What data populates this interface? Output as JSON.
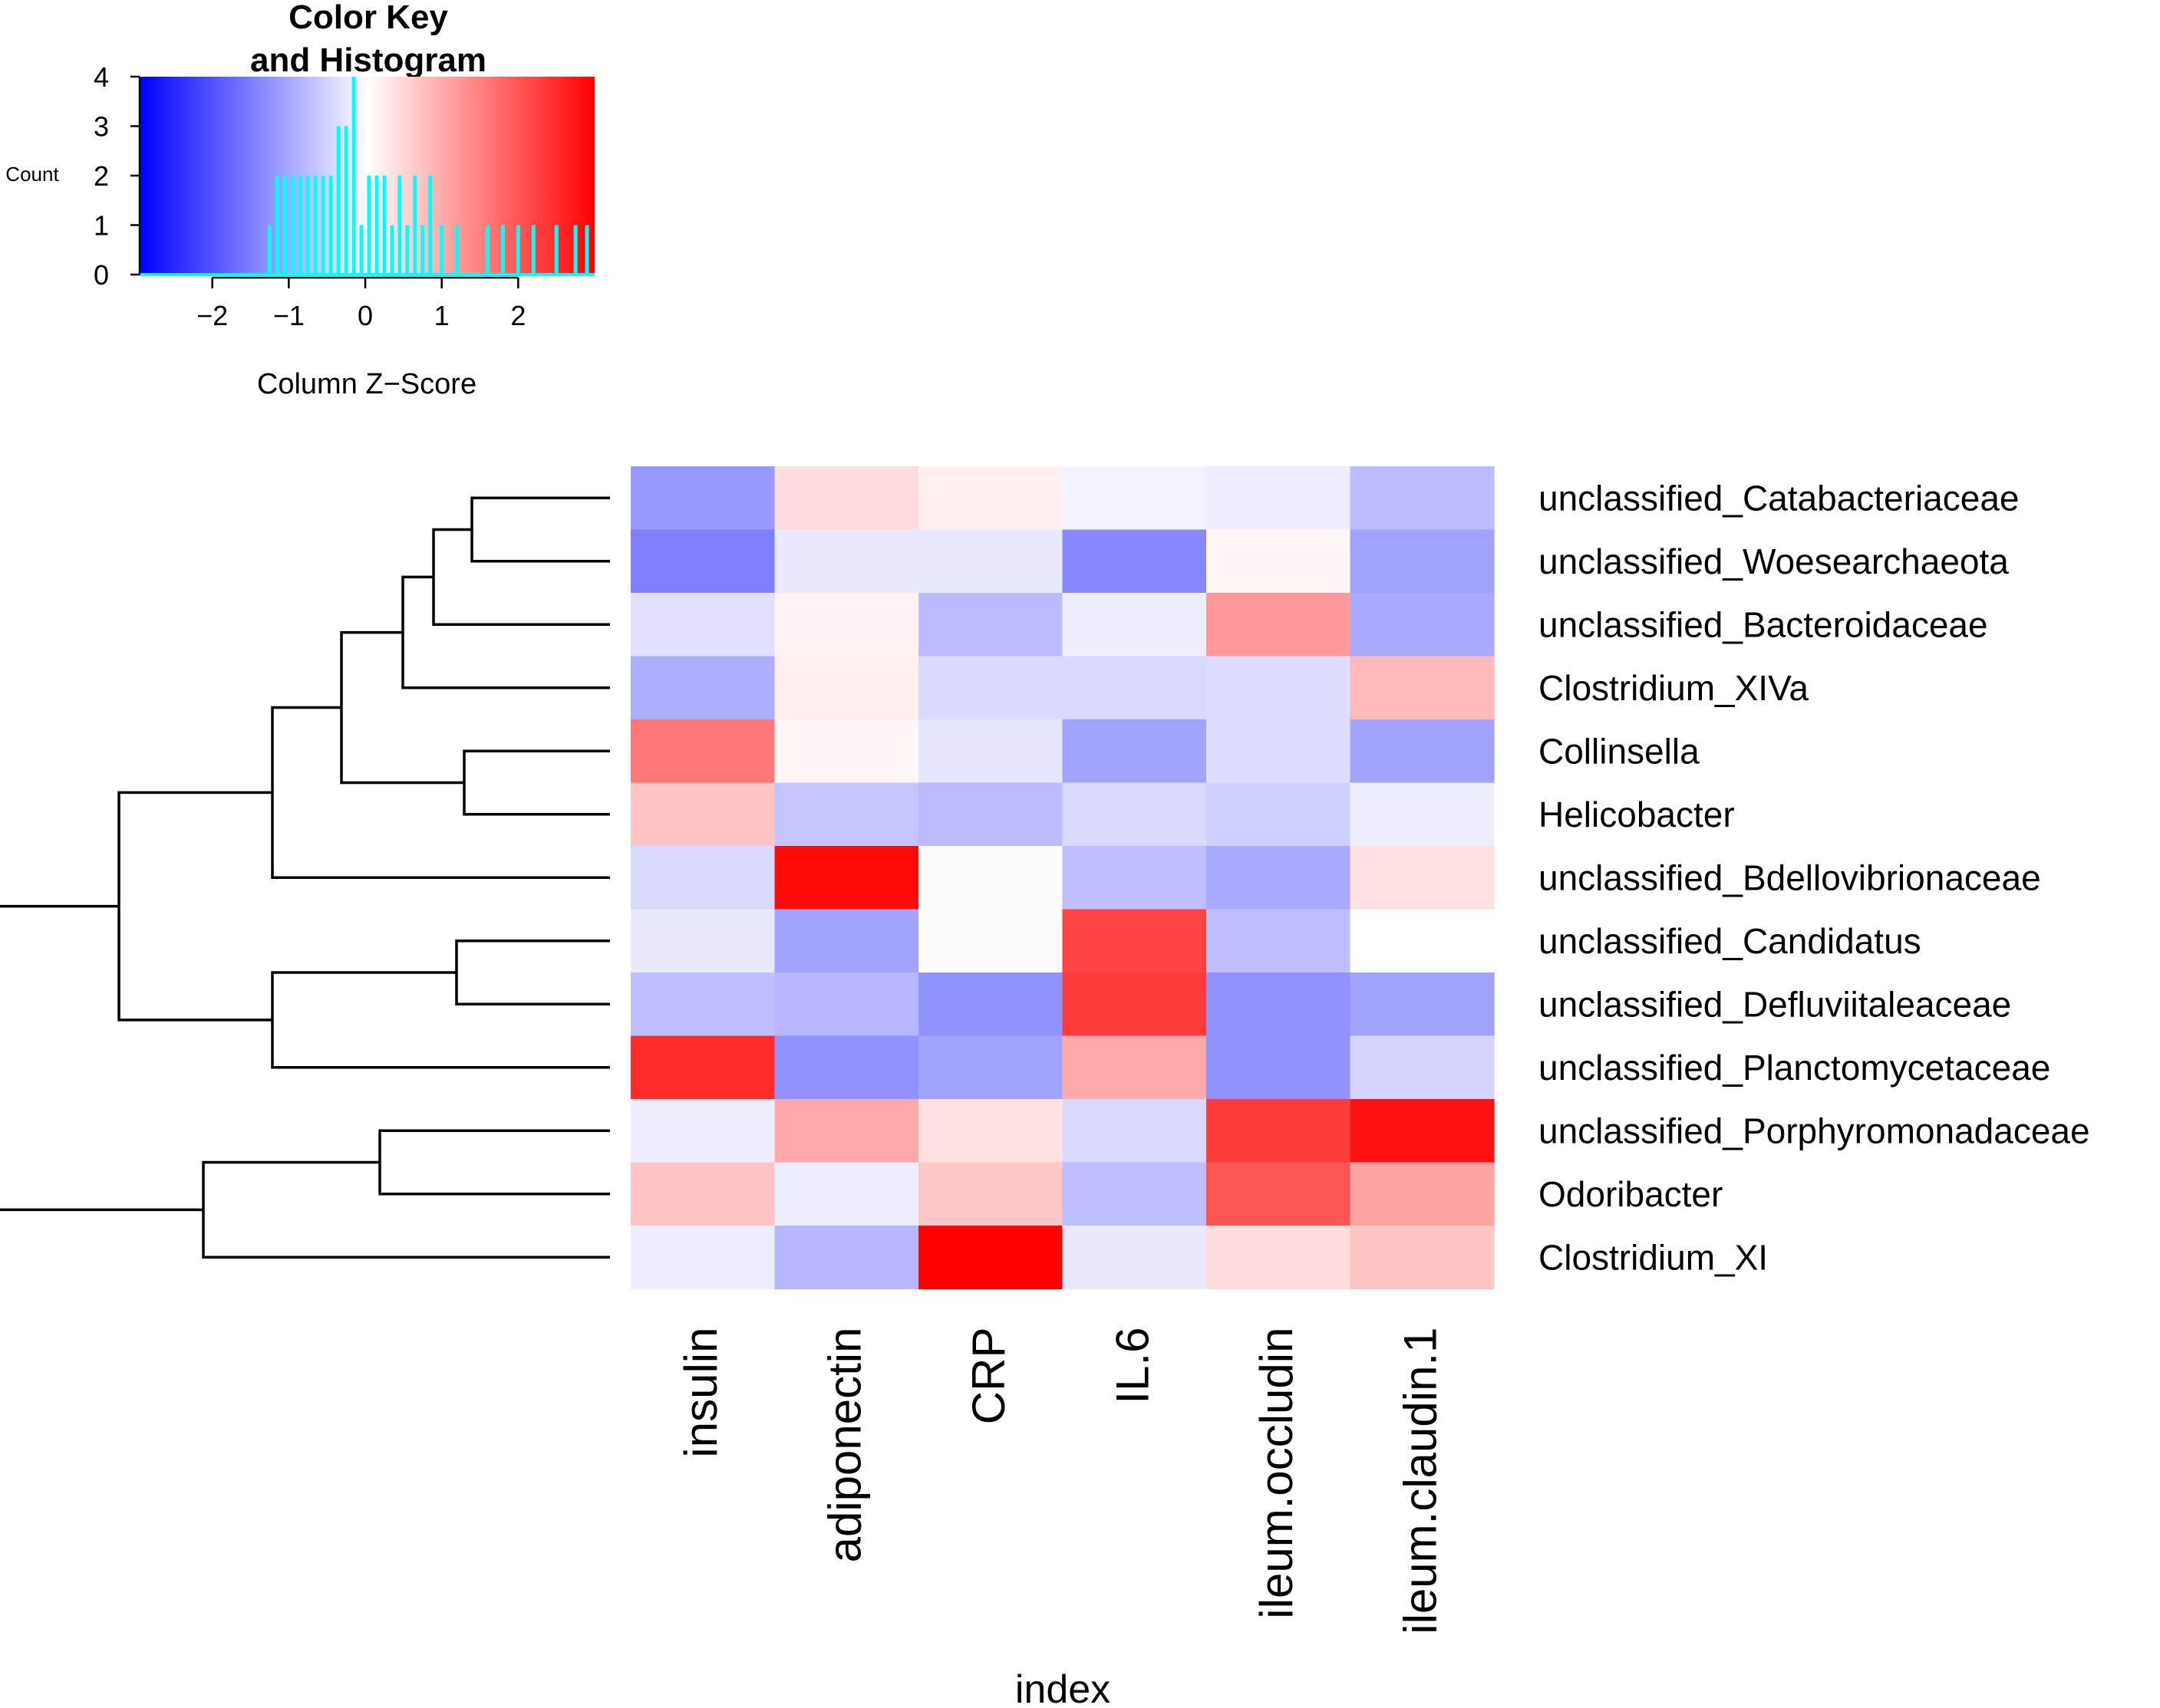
{
  "chart_data": [
    {
      "type": "heatmap",
      "title": "",
      "xlabel": "index",
      "ylabel": "",
      "columns": [
        "insulin",
        "adiponectin",
        "CRP",
        "IL.6",
        "ileum.occludin",
        "ileum.claudin.1"
      ],
      "rows": [
        "unclassified_Catabacteriaceae",
        "unclassified_Woesearchaeota",
        "unclassified_Bacteroidaceae",
        "Clostridium_XIVa",
        "Collinsella",
        "Helicobacter",
        "unclassified_Bdellovibrionaceae",
        "unclassified_Candidatus",
        "unclassified_Defluviitaleaceae",
        "unclassified_Planctomycetaceae",
        "unclassified_Porphyromonadaceae",
        "Odoribacter",
        "Clostridium_XI"
      ],
      "values": [
        [
          -1.2,
          0.4,
          0.2,
          -0.15,
          -0.2,
          -0.8
        ],
        [
          -1.5,
          -0.25,
          -0.25,
          -1.4,
          0.1,
          -1.1
        ],
        [
          -0.35,
          0.15,
          -0.8,
          -0.2,
          1.2,
          -1.0
        ],
        [
          -0.95,
          0.2,
          -0.45,
          -0.45,
          -0.4,
          0.8
        ],
        [
          1.6,
          0.1,
          -0.3,
          -1.1,
          -0.4,
          -1.1
        ],
        [
          0.7,
          -0.7,
          -0.8,
          -0.45,
          -0.55,
          -0.2
        ],
        [
          -0.45,
          2.9,
          0.05,
          -0.75,
          -1.0,
          0.35
        ],
        [
          -0.25,
          -1.1,
          0.05,
          2.2,
          -0.75,
          0.0
        ],
        [
          -0.75,
          -0.85,
          -1.3,
          2.3,
          -1.3,
          -1.1
        ],
        [
          2.5,
          -1.3,
          -1.1,
          1.0,
          -1.3,
          -0.5
        ],
        [
          -0.2,
          1.0,
          0.35,
          -0.45,
          2.3,
          2.8
        ],
        [
          0.7,
          -0.2,
          0.65,
          -0.75,
          2.0,
          1.1
        ],
        [
          -0.2,
          -0.85,
          3.0,
          -0.25,
          0.4,
          0.7
        ]
      ],
      "color_scale": {
        "min": -3,
        "max": 3,
        "low_color": "#0000ff",
        "mid_color": "#ffffff",
        "high_color": "#ff0000"
      },
      "row_dendrogram": {
        "leaf_order": [
          0,
          1,
          2,
          3,
          4,
          5,
          6,
          7,
          8,
          9,
          10,
          11,
          12
        ],
        "merges": [
          {
            "left": "L0",
            "right": "L1",
            "height": 0.18
          },
          {
            "left": "M1",
            "right": "L2",
            "height": 0.23
          },
          {
            "left": "M2",
            "right": "L3",
            "height": 0.27
          },
          {
            "left": "L4",
            "right": "L5",
            "height": 0.19
          },
          {
            "left": "M3",
            "right": "M4",
            "height": 0.35
          },
          {
            "left": "M5",
            "right": "L6",
            "height": 0.44
          },
          {
            "left": "L7",
            "right": "L8",
            "height": 0.2
          },
          {
            "left": "M7",
            "right": "L9",
            "height": 0.44
          },
          {
            "left": "M6",
            "right": "M8",
            "height": 0.64
          },
          {
            "left": "L10",
            "right": "L11",
            "height": 0.3
          },
          {
            "left": "M10",
            "right": "L12",
            "height": 0.53
          },
          {
            "left": "M9",
            "right": "M11",
            "height": 0.8
          }
        ]
      }
    },
    {
      "type": "bar",
      "title": "Color Key\nand Histogram",
      "title_lines": [
        "Color Key",
        "and Histogram"
      ],
      "xlabel": "Column Z−Score",
      "ylabel": "Count",
      "xlim": [
        -2.95,
        3.0
      ],
      "ylim": [
        0,
        4
      ],
      "x_ticks": [
        -2,
        -1,
        0,
        1,
        2
      ],
      "x_tick_labels": [
        "−2",
        "−1",
        "0",
        "1",
        "2"
      ],
      "y_ticks": [
        0,
        1,
        2,
        3,
        4
      ],
      "y_tick_labels": [
        "0",
        "1",
        "2",
        "3",
        "4"
      ],
      "bin_width": 0.05,
      "histogram": [
        {
          "x": -1.25,
          "count": 1
        },
        {
          "x": -1.15,
          "count": 2
        },
        {
          "x": -1.05,
          "count": 2
        },
        {
          "x": -0.95,
          "count": 2
        },
        {
          "x": -0.85,
          "count": 2
        },
        {
          "x": -0.75,
          "count": 2
        },
        {
          "x": -0.65,
          "count": 2
        },
        {
          "x": -0.55,
          "count": 2
        },
        {
          "x": -0.45,
          "count": 2
        },
        {
          "x": -0.35,
          "count": 3
        },
        {
          "x": -0.25,
          "count": 3
        },
        {
          "x": -0.15,
          "count": 4
        },
        {
          "x": -0.05,
          "count": 1
        },
        {
          "x": 0.05,
          "count": 2
        },
        {
          "x": 0.15,
          "count": 2
        },
        {
          "x": 0.25,
          "count": 2
        },
        {
          "x": 0.35,
          "count": 1
        },
        {
          "x": 0.45,
          "count": 2
        },
        {
          "x": 0.55,
          "count": 1
        },
        {
          "x": 0.65,
          "count": 2
        },
        {
          "x": 0.75,
          "count": 1
        },
        {
          "x": 0.85,
          "count": 2
        },
        {
          "x": 1.0,
          "count": 1
        },
        {
          "x": 1.2,
          "count": 1
        },
        {
          "x": 1.6,
          "count": 1
        },
        {
          "x": 1.8,
          "count": 1
        },
        {
          "x": 2.0,
          "count": 1
        },
        {
          "x": 2.2,
          "count": 1
        },
        {
          "x": 2.5,
          "count": 1
        },
        {
          "x": 2.75,
          "count": 1
        },
        {
          "x": 2.9,
          "count": 1
        }
      ],
      "bar_color": "#00ffff"
    }
  ]
}
